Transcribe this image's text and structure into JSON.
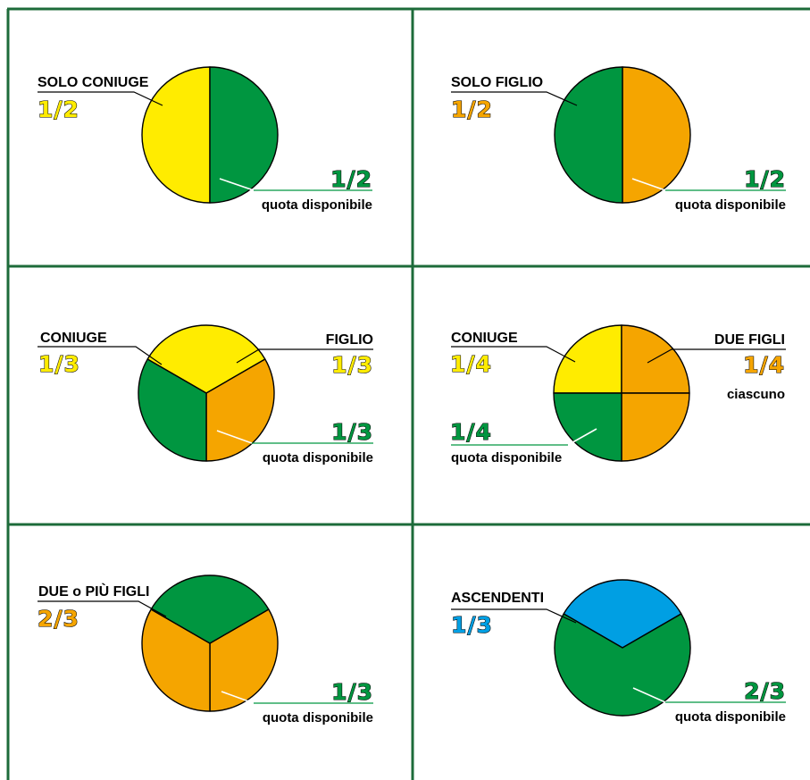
{
  "colors": {
    "spouse": "#ffec00",
    "child": "#f5a500",
    "available": "#009640",
    "ascendant": "#009fe3",
    "grid": "#1d6b3a"
  },
  "panels": [
    {
      "heir_label": "SOLO CONIUGE",
      "heir_fraction": "1/2",
      "available_fraction": "1/2",
      "available_caption": "quota disponibile"
    },
    {
      "heir_label": "SOLO FIGLIO",
      "heir_fraction": "1/2",
      "available_fraction": "1/2",
      "available_caption": "quota disponibile"
    },
    {
      "heir_label": "CONIUGE",
      "heir_fraction": "1/3",
      "second_label": "FIGLIO",
      "second_fraction": "1/3",
      "available_fraction": "1/3",
      "available_caption": "quota disponibile"
    },
    {
      "heir_label": "CONIUGE",
      "heir_fraction": "1/4",
      "second_label": "DUE FIGLI",
      "second_fraction": "1/4",
      "second_caption": "ciascuno",
      "available_fraction": "1/4",
      "available_caption": "quota disponibile"
    },
    {
      "heir_label": "DUE o PIÙ FIGLI",
      "heir_fraction": "2/3",
      "available_fraction": "1/3",
      "available_caption": "quota disponibile"
    },
    {
      "heir_label": "ASCENDENTI",
      "heir_fraction": "1/3",
      "available_fraction": "2/3",
      "available_caption": "quota disponibile"
    }
  ],
  "chart_data": [
    {
      "type": "pie",
      "slices": [
        {
          "label": "SOLO CONIUGE",
          "value": 0.5,
          "color": "#ffec00"
        },
        {
          "label": "quota disponibile",
          "value": 0.5,
          "color": "#009640"
        }
      ]
    },
    {
      "type": "pie",
      "slices": [
        {
          "label": "SOLO FIGLIO",
          "value": 0.5,
          "color": "#f5a500"
        },
        {
          "label": "quota disponibile",
          "value": 0.5,
          "color": "#009640"
        }
      ]
    },
    {
      "type": "pie",
      "slices": [
        {
          "label": "CONIUGE",
          "value": 0.3333,
          "color": "#ffec00"
        },
        {
          "label": "FIGLIO",
          "value": 0.3333,
          "color": "#f5a500"
        },
        {
          "label": "quota disponibile",
          "value": 0.3333,
          "color": "#009640"
        }
      ]
    },
    {
      "type": "pie",
      "slices": [
        {
          "label": "CONIUGE",
          "value": 0.25,
          "color": "#ffec00"
        },
        {
          "label": "DUE FIGLI",
          "value": 0.25,
          "color": "#f5a500"
        },
        {
          "label": "DUE FIGLI",
          "value": 0.25,
          "color": "#f5a500"
        },
        {
          "label": "quota disponibile",
          "value": 0.25,
          "color": "#009640"
        }
      ]
    },
    {
      "type": "pie",
      "slices": [
        {
          "label": "DUE o PIÙ FIGLI",
          "value": 0.3333,
          "color": "#f5a500"
        },
        {
          "label": "DUE o PIÙ FIGLI",
          "value": 0.3333,
          "color": "#f5a500"
        },
        {
          "label": "quota disponibile",
          "value": 0.3333,
          "color": "#009640"
        }
      ]
    },
    {
      "type": "pie",
      "slices": [
        {
          "label": "ASCENDENTI",
          "value": 0.3333,
          "color": "#009fe3"
        },
        {
          "label": "quota disponibile",
          "value": 0.6667,
          "color": "#009640"
        }
      ]
    }
  ]
}
